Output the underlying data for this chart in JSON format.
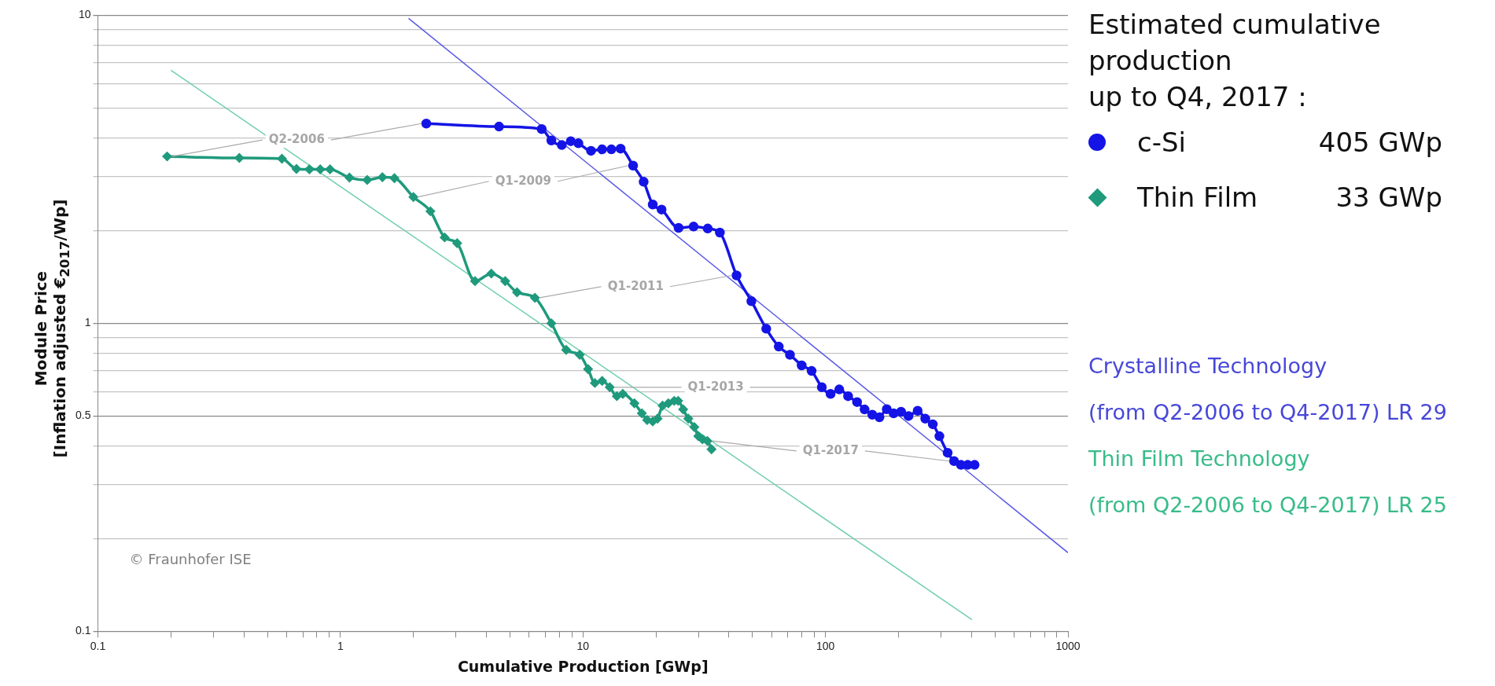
{
  "chart_data": {
    "type": "line",
    "xlabel": "Cumulative Production [GWp]",
    "ylabel": "Module Price\n[Inflation adjusted €$_{2017}$/Wp]",
    "legend_title": "Estimated cumulative\nproduction\nup to Q4, 2017 :",
    "log": "xy",
    "grid": "y",
    "legend": "right",
    "xlim": [
      0.1,
      1000
    ],
    "ylim": [
      0.1,
      10
    ],
    "xticks": [
      0.1,
      {
        "value": 0.2,
        "label": null
      },
      {
        "value": 0.3,
        "label": null
      },
      {
        "value": 0.4,
        "label": null
      },
      {
        "value": 0.5,
        "label": null
      },
      {
        "value": 0.6,
        "label": null
      },
      {
        "value": 0.7,
        "label": null
      },
      {
        "value": 0.8,
        "label": null
      },
      {
        "value": 0.9,
        "label": null
      },
      1,
      {
        "value": 2,
        "label": null
      },
      {
        "value": 3,
        "label": null
      },
      {
        "value": 4,
        "label": null
      },
      {
        "value": 5,
        "label": null
      },
      {
        "value": 6,
        "label": null
      },
      {
        "value": 7,
        "label": null
      },
      {
        "value": 8,
        "label": null
      },
      {
        "value": 9,
        "label": null
      },
      10,
      {
        "value": 20,
        "label": null
      },
      {
        "value": 30,
        "label": null
      },
      {
        "value": 40,
        "label": null
      },
      {
        "value": 50,
        "label": null
      },
      {
        "value": 60,
        "label": null
      },
      {
        "value": 70,
        "label": null
      },
      {
        "value": 80,
        "label": null
      },
      {
        "value": 90,
        "label": null
      },
      100,
      {
        "value": 200,
        "label": null
      },
      {
        "value": 300,
        "label": null
      },
      {
        "value": 400,
        "label": null
      },
      {
        "value": 500,
        "label": null
      },
      {
        "value": 600,
        "label": null
      },
      {
        "value": 700,
        "label": null
      },
      {
        "value": 800,
        "label": null
      },
      {
        "value": 900,
        "label": null
      },
      1000
    ],
    "yticks": [
      0.1,
      {
        "value": 0.2,
        "label": null
      },
      {
        "value": 0.3,
        "label": null
      },
      {
        "value": 0.4,
        "label": null
      },
      0.5,
      {
        "value": 0.6,
        "label": null
      },
      {
        "value": 0.7,
        "label": null
      },
      {
        "value": 0.8,
        "label": null
      },
      {
        "value": 0.9,
        "label": null
      },
      1,
      {
        "value": 2,
        "label": null
      },
      {
        "value": 3,
        "label": null
      },
      {
        "value": 4,
        "label": null
      },
      {
        "value": 5,
        "label": null
      },
      {
        "value": 6,
        "label": null
      },
      {
        "value": 7,
        "label": null
      },
      {
        "value": 8,
        "label": null
      },
      {
        "value": 9,
        "label": null
      },
      10
    ],
    "series": [
      {
        "name": "c-Si",
        "color": "#1414e6",
        "type": "line",
        "marker": "circle",
        "x": [
          2.26,
          4.51,
          6.76,
          7.41,
          8.18,
          8.91,
          9.58,
          10.8,
          12.0,
          13.1,
          14.3,
          16.1,
          17.8,
          19.4,
          21.1,
          24.8,
          28.6,
          32.7,
          36.7,
          43.0,
          49.5,
          57.0,
          64.2,
          71.4,
          79.8,
          87.7,
          96.6,
          105,
          114,
          124,
          135,
          145,
          156,
          167,
          179,
          191,
          205,
          220,
          240,
          258,
          277,
          295,
          319,
          339,
          362,
          386,
          412
        ],
        "values": [
          4.45,
          4.35,
          4.27,
          3.92,
          3.79,
          3.9,
          3.84,
          3.63,
          3.67,
          3.67,
          3.69,
          3.25,
          2.88,
          2.43,
          2.34,
          2.04,
          2.06,
          2.03,
          1.97,
          1.43,
          1.18,
          0.96,
          0.84,
          0.79,
          0.73,
          0.7,
          0.62,
          0.59,
          0.61,
          0.58,
          0.555,
          0.525,
          0.505,
          0.495,
          0.526,
          0.51,
          0.516,
          0.5,
          0.52,
          0.49,
          0.47,
          0.43,
          0.38,
          0.357,
          0.347,
          0.347,
          0.347
        ]
      },
      {
        "name": "Thin Film",
        "color": "#1f9a7c",
        "type": "line",
        "marker": "diamond",
        "x": [
          0.193,
          0.383,
          0.574,
          0.659,
          0.745,
          0.826,
          0.906,
          1.09,
          1.29,
          1.49,
          1.67,
          2.0,
          2.35,
          2.69,
          3.03,
          3.59,
          4.19,
          4.78,
          5.35,
          6.34,
          7.41,
          8.53,
          9.7,
          10.5,
          11.2,
          12.0,
          12.9,
          13.8,
          14.6,
          16.3,
          17.5,
          18.4,
          19.4,
          20.3,
          21.3,
          22.5,
          23.8,
          24.7,
          25.9,
          27.2,
          28.8,
          29.9,
          31.1,
          32.6,
          33.9
        ],
        "values": [
          3.48,
          3.44,
          3.42,
          3.17,
          3.16,
          3.16,
          3.16,
          2.97,
          2.92,
          2.98,
          2.96,
          2.57,
          2.31,
          1.9,
          1.82,
          1.37,
          1.45,
          1.37,
          1.26,
          1.21,
          1.0,
          0.82,
          0.79,
          0.71,
          0.64,
          0.65,
          0.62,
          0.58,
          0.59,
          0.55,
          0.51,
          0.485,
          0.48,
          0.49,
          0.54,
          0.55,
          0.56,
          0.56,
          0.525,
          0.49,
          0.46,
          0.43,
          0.42,
          0.415,
          0.39
        ]
      },
      {
        "name": "Crystalline Technology\n(from Q2-2006 to Q4-2017) LR 29",
        "color": "#5a5ae6",
        "type": "line",
        "marker": "none",
        "x": [
          1.91,
          1000
        ],
        "values": [
          9.77,
          0.18
        ]
      },
      {
        "name": "Thin Film Technology\n(from Q2-2006 to Q4-2017) LR 25",
        "color": "#6fcfaa",
        "type": "line",
        "marker": "none",
        "x": [
          0.2,
          402
        ],
        "values": [
          6.63,
          0.109
        ]
      }
    ],
    "annotations": [
      "405 GWp",
      "33 GWp",
      "© Fraunhofer ISE",
      {
        "text": "Q2-2006",
        "x": 2.26,
        "y": 4.45
      },
      {
        "text": "Q1-2009",
        "x": 16.1,
        "y": 3.25
      },
      {
        "text": "Q1-2011",
        "x": 43.0,
        "y": 1.43
      },
      {
        "text": "Q1-2013",
        "x": 96.6,
        "y": 0.62
      },
      {
        "text": "Q1-2017",
        "x": 339,
        "y": 0.357
      }
    ]
  }
}
